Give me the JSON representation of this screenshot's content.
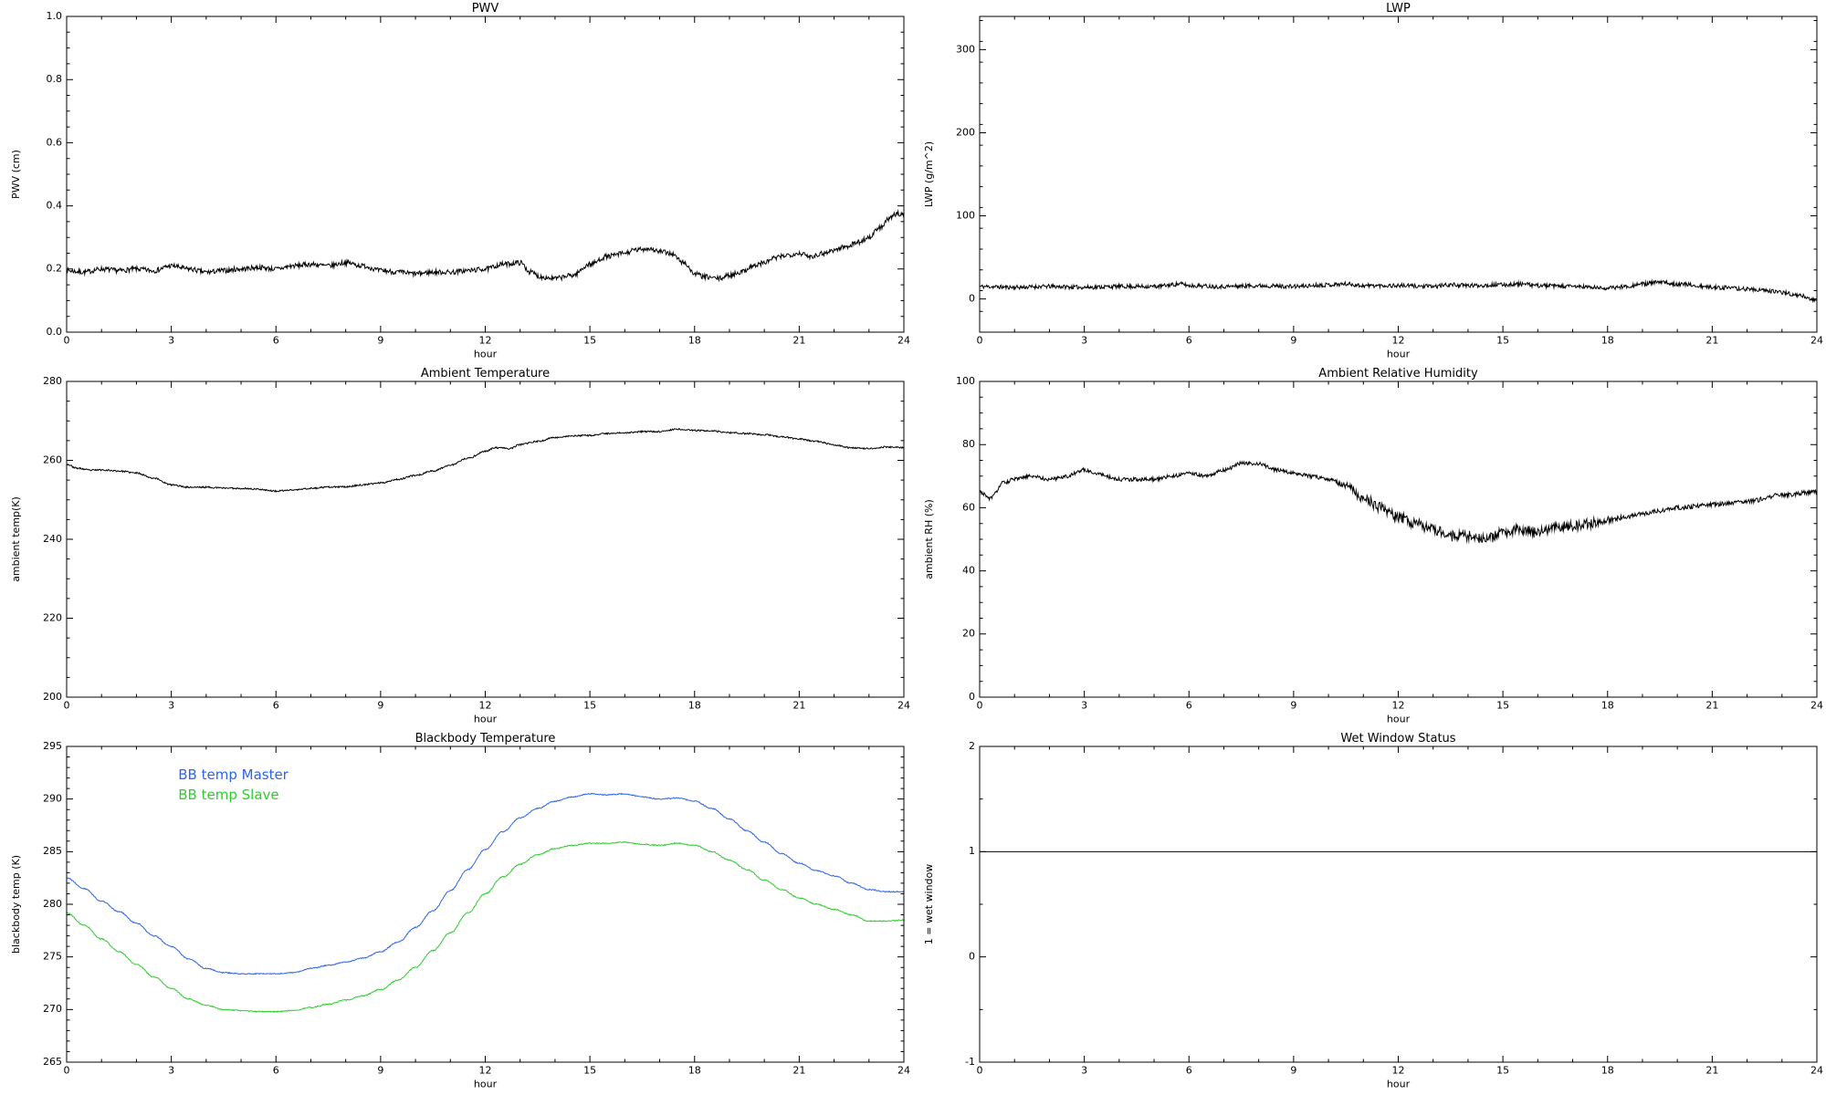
{
  "page": {
    "background": "#ffffff",
    "line_color": "#000000"
  },
  "chart_data": [
    {
      "type": "line",
      "title": "PWV",
      "xlabel": "hour",
      "ylabel": "PWV (cm)",
      "xlim": [
        0,
        24
      ],
      "ylim": [
        0,
        1.0
      ],
      "xticks": {
        "values": [
          0,
          3,
          6,
          9,
          12,
          15,
          18,
          21,
          24
        ],
        "labels": [
          "0",
          "3",
          "6",
          "9",
          "12",
          "15",
          "18",
          "21",
          "24"
        ],
        "minor": 1
      },
      "yticks": {
        "values": [
          0,
          0.2,
          0.4,
          0.6,
          0.8,
          1.0
        ],
        "labels": [
          "0.0",
          "0.2",
          "0.4",
          "0.6",
          "0.8",
          "1.0"
        ],
        "minor": 0.05
      },
      "grid": false,
      "series": [
        {
          "name": "PWV",
          "color": "#000000",
          "noise": 0.008,
          "seed": 7,
          "x": [
            0,
            0.5,
            1,
            1.5,
            2,
            2.5,
            3,
            3.5,
            4,
            4.5,
            5,
            5.5,
            6,
            6.5,
            7,
            7.5,
            8,
            8.5,
            9,
            9.5,
            10,
            10.5,
            11,
            11.5,
            12,
            12.5,
            13,
            13.3,
            13.6,
            14,
            14.5,
            15,
            15.5,
            16,
            16.3,
            16.7,
            17,
            17.3,
            17.7,
            18,
            18.3,
            18.7,
            19,
            19.3,
            19.7,
            20,
            20.3,
            20.7,
            21,
            21.3,
            21.7,
            22,
            22.3,
            22.7,
            23,
            23.3,
            23.6,
            23.8,
            24
          ],
          "y": [
            0.195,
            0.19,
            0.2,
            0.195,
            0.2,
            0.195,
            0.21,
            0.2,
            0.19,
            0.195,
            0.2,
            0.205,
            0.2,
            0.21,
            0.215,
            0.21,
            0.22,
            0.21,
            0.195,
            0.19,
            0.185,
            0.19,
            0.19,
            0.195,
            0.2,
            0.215,
            0.22,
            0.19,
            0.175,
            0.17,
            0.18,
            0.215,
            0.24,
            0.25,
            0.26,
            0.265,
            0.255,
            0.25,
            0.22,
            0.185,
            0.175,
            0.17,
            0.18,
            0.19,
            0.21,
            0.22,
            0.235,
            0.245,
            0.25,
            0.24,
            0.25,
            0.26,
            0.27,
            0.285,
            0.3,
            0.33,
            0.36,
            0.375,
            0.375
          ]
        }
      ]
    },
    {
      "type": "line",
      "title": "LWP",
      "xlabel": "hour",
      "ylabel": "LWP (g/m^2)",
      "xlim": [
        0,
        24
      ],
      "ylim": [
        -40,
        340
      ],
      "xticks": {
        "values": [
          0,
          3,
          6,
          9,
          12,
          15,
          18,
          21,
          24
        ],
        "labels": [
          "0",
          "3",
          "6",
          "9",
          "12",
          "15",
          "18",
          "21",
          "24"
        ],
        "minor": 1
      },
      "yticks": {
        "values": [
          0,
          100,
          200,
          300
        ],
        "labels": [
          "0",
          "100",
          "200",
          "300"
        ],
        "minor": 25
      },
      "grid": false,
      "series": [
        {
          "name": "LWP",
          "color": "#000000",
          "noise": 2.5,
          "seed": 11,
          "x": [
            0,
            1,
            2,
            3,
            4,
            5,
            5.8,
            6,
            7,
            8,
            9,
            10,
            10.5,
            11,
            12,
            13,
            13.5,
            14,
            15,
            15.5,
            16,
            17,
            18,
            18.5,
            19,
            19.5,
            20,
            21,
            22,
            22.5,
            23,
            23.5,
            24
          ],
          "y": [
            15,
            14,
            15,
            14,
            15,
            15,
            18,
            16,
            15,
            16,
            15,
            17,
            18,
            16,
            16,
            15,
            17,
            16,
            17,
            18,
            16,
            15,
            13,
            15,
            18,
            20,
            18,
            14,
            12,
            10,
            8,
            4,
            -2
          ]
        }
      ]
    },
    {
      "type": "line",
      "title": "Ambient Temperature",
      "xlabel": "hour",
      "ylabel": "ambient temp(K)",
      "xlim": [
        0,
        24
      ],
      "ylim": [
        200,
        280
      ],
      "xticks": {
        "values": [
          0,
          3,
          6,
          9,
          12,
          15,
          18,
          21,
          24
        ],
        "labels": [
          "0",
          "3",
          "6",
          "9",
          "12",
          "15",
          "18",
          "21",
          "24"
        ],
        "minor": 1
      },
      "yticks": {
        "values": [
          200,
          220,
          240,
          260,
          280
        ],
        "labels": [
          "200",
          "220",
          "240",
          "260",
          "280"
        ],
        "minor": 5
      },
      "grid": false,
      "series": [
        {
          "name": "ambient temperature",
          "color": "#000000",
          "noise": 0.2,
          "seed": 23,
          "x": [
            0,
            0.3,
            0.7,
            1,
            1.5,
            2,
            2.5,
            3,
            3.5,
            4,
            4.5,
            5,
            5.5,
            6,
            6.5,
            7,
            7.5,
            8,
            8.5,
            9,
            9.5,
            10,
            10.5,
            11,
            11.5,
            12,
            12.3,
            12.7,
            13,
            13.5,
            14,
            14.5,
            15,
            15.5,
            16,
            16.5,
            17,
            17.5,
            18,
            18.5,
            19,
            19.5,
            20,
            20.5,
            21,
            21.5,
            22,
            22.5,
            23,
            23.5,
            24
          ],
          "y": [
            259,
            258,
            257.5,
            257.6,
            257.3,
            256.8,
            255.5,
            253.8,
            253.2,
            253.2,
            253,
            252.9,
            252.7,
            252.2,
            252.5,
            252.9,
            253.2,
            253.3,
            253.8,
            254.3,
            255.2,
            256.2,
            257.3,
            258.8,
            260.5,
            262.3,
            263.2,
            263,
            264,
            264.8,
            265.8,
            266.2,
            266.3,
            266.8,
            267,
            267.3,
            267.3,
            267.9,
            267.6,
            267.4,
            267,
            266.8,
            266.5,
            266,
            265.4,
            264.8,
            263.9,
            263.2,
            263,
            263.4,
            263.2
          ]
        }
      ]
    },
    {
      "type": "line",
      "title": "Ambient Relative Humidity",
      "xlabel": "hour",
      "ylabel": "ambient RH (%)",
      "xlim": [
        0,
        24
      ],
      "ylim": [
        0,
        100
      ],
      "xticks": {
        "values": [
          0,
          3,
          6,
          9,
          12,
          15,
          18,
          21,
          24
        ],
        "labels": [
          "0",
          "3",
          "6",
          "9",
          "12",
          "15",
          "18",
          "21",
          "24"
        ],
        "minor": 1
      },
      "yticks": {
        "values": [
          0,
          20,
          40,
          60,
          80,
          100
        ],
        "labels": [
          "0",
          "20",
          "40",
          "60",
          "80",
          "100"
        ],
        "minor": 5
      },
      "grid": false,
      "series": [
        {
          "name": "ambient RH",
          "color": "#000000",
          "noise": {
            "x": [
              0,
              10,
              11.5,
              17.5,
              18.5,
              24
            ],
            "v": [
              0.6,
              0.6,
              1.7,
              1.7,
              0.7,
              0.7
            ]
          },
          "seed": 31,
          "x": [
            0,
            0.3,
            0.7,
            1,
            1.5,
            2,
            2.5,
            3,
            3.3,
            4,
            4.5,
            5,
            5.5,
            6,
            6.5,
            7,
            7.5,
            8,
            8.5,
            9,
            9.5,
            10,
            10.5,
            11,
            11.5,
            12,
            12.5,
            13,
            13.5,
            14,
            14.5,
            15,
            15.5,
            16,
            16.5,
            17,
            17.5,
            18,
            18.5,
            19,
            19.5,
            20,
            21,
            22,
            23,
            24
          ],
          "y": [
            65,
            63,
            68,
            69,
            70,
            69,
            70,
            72,
            71,
            69,
            69,
            69,
            70,
            71,
            70,
            72,
            74,
            74,
            72,
            71,
            70,
            69,
            67,
            63,
            60,
            57,
            55,
            53,
            51,
            51,
            50,
            52,
            53,
            52,
            54,
            54,
            55,
            56,
            57,
            58,
            59,
            60,
            61,
            62,
            64,
            65
          ]
        }
      ]
    },
    {
      "type": "line",
      "title": "Blackbody Temperature",
      "xlabel": "hour",
      "ylabel": "blackbody temp (K)",
      "xlim": [
        0,
        24
      ],
      "ylim": [
        265,
        295
      ],
      "xticks": {
        "values": [
          0,
          3,
          6,
          9,
          12,
          15,
          18,
          21,
          24
        ],
        "labels": [
          "0",
          "3",
          "6",
          "9",
          "12",
          "15",
          "18",
          "21",
          "24"
        ],
        "minor": 1
      },
      "yticks": {
        "values": [
          265,
          270,
          275,
          280,
          285,
          290,
          295
        ],
        "labels": [
          "265",
          "270",
          "275",
          "280",
          "285",
          "290",
          "295"
        ],
        "minor": 1
      },
      "grid": false,
      "legend": {
        "entries": [
          {
            "label": "BB temp Master",
            "color": "#2b65ec",
            "x": 3.2,
            "y": 292.2
          },
          {
            "label": "BB temp Slave",
            "color": "#2ecc2e",
            "x": 3.2,
            "y": 290.3
          }
        ]
      },
      "series": [
        {
          "name": "BB temp Master",
          "color": "#2b65ec",
          "noise": 0.05,
          "seed": 41,
          "x": [
            0,
            0.5,
            1,
            1.5,
            2,
            2.5,
            3,
            3.5,
            4,
            4.5,
            5,
            5.5,
            6,
            6.5,
            7,
            7.5,
            8,
            8.5,
            9,
            9.5,
            10,
            10.5,
            11,
            11.5,
            12,
            12.5,
            13,
            13.5,
            14,
            14.5,
            15,
            15.5,
            16,
            16.5,
            17,
            17.5,
            18,
            18.5,
            19,
            19.5,
            20,
            20.5,
            21,
            21.5,
            22,
            22.5,
            23,
            23.5,
            24
          ],
          "y": [
            282.5,
            281.5,
            280.3,
            279.3,
            278.2,
            277,
            276,
            274.8,
            273.9,
            273.5,
            273.4,
            273.4,
            273.4,
            273.5,
            273.9,
            274.2,
            274.5,
            274.9,
            275.5,
            276.4,
            277.8,
            279.4,
            281.3,
            283.3,
            285.2,
            286.9,
            288.2,
            289.1,
            289.8,
            290.2,
            290.5,
            290.4,
            290.5,
            290.2,
            290,
            290.1,
            289.8,
            289.1,
            288.1,
            287,
            285.9,
            284.8,
            283.9,
            283.2,
            282.7,
            282,
            281.4,
            281.2,
            281.2
          ]
        },
        {
          "name": "BB temp Slave",
          "color": "#2ecc2e",
          "noise": 0.05,
          "seed": 43,
          "x": [
            0,
            0.5,
            1,
            1.5,
            2,
            2.5,
            3,
            3.5,
            4,
            4.5,
            5,
            5.5,
            6,
            6.5,
            7,
            7.5,
            8,
            8.5,
            9,
            9.5,
            10,
            10.5,
            11,
            11.5,
            12,
            12.5,
            13,
            13.5,
            14,
            14.5,
            15,
            15.5,
            16,
            16.5,
            17,
            17.5,
            18,
            18.5,
            19,
            19.5,
            20,
            20.5,
            21,
            21.5,
            22,
            22.5,
            23,
            23.5,
            24
          ],
          "y": [
            279.2,
            278,
            276.7,
            275.5,
            274.3,
            273.1,
            272,
            271,
            270.4,
            270,
            269.9,
            269.8,
            269.8,
            269.9,
            270.2,
            270.5,
            270.9,
            271.3,
            271.9,
            272.8,
            274,
            275.6,
            277.3,
            279.2,
            281,
            282.6,
            283.8,
            284.7,
            285.3,
            285.6,
            285.8,
            285.8,
            285.9,
            285.7,
            285.6,
            285.8,
            285.6,
            285,
            284.2,
            283.3,
            282.3,
            281.4,
            280.6,
            280,
            279.5,
            279,
            278.4,
            278.4,
            278.5
          ]
        }
      ]
    },
    {
      "type": "line",
      "title": "Wet Window Status",
      "xlabel": "hour",
      "ylabel": "1 = wet window",
      "xlim": [
        0,
        24
      ],
      "ylim": [
        -1,
        2
      ],
      "xticks": {
        "values": [
          0,
          3,
          6,
          9,
          12,
          15,
          18,
          21,
          24
        ],
        "labels": [
          "0",
          "3",
          "6",
          "9",
          "12",
          "15",
          "18",
          "21",
          "24"
        ],
        "minor": 1
      },
      "yticks": {
        "values": [
          -1,
          0,
          1,
          2
        ],
        "labels": [
          "-1",
          "0",
          "1",
          "2"
        ],
        "minor": 0.5
      },
      "grid": false,
      "series": [
        {
          "name": "wet window status",
          "color": "#000000",
          "noise": 0,
          "seed": 53,
          "x": [
            0,
            24
          ],
          "y": [
            1,
            1
          ]
        }
      ]
    }
  ]
}
